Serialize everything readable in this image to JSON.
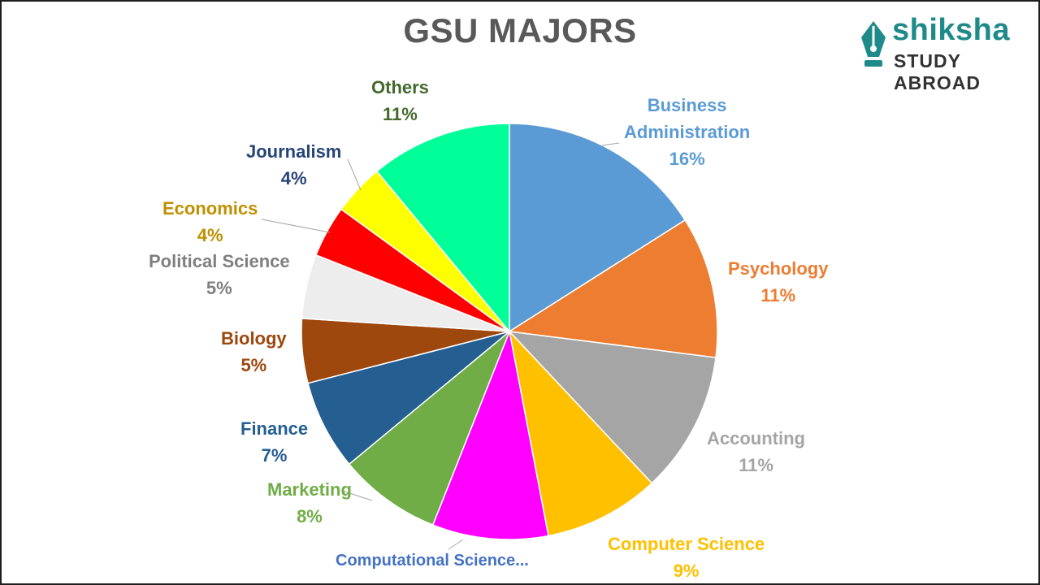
{
  "logo": {
    "brand": "shiksha",
    "subtitle": "STUDY ABROAD",
    "icon": "pen-nib-icon",
    "colors": {
      "brand": "#1f8a8a",
      "subtitle": "#333333"
    }
  },
  "chart_data": {
    "type": "pie",
    "title": "GSU MAJORS",
    "start": "12 o'clock",
    "direction": "clockwise",
    "legend": "none (data labels)",
    "slices": [
      {
        "label": "Business Administration",
        "display": [
          "Business",
          "Administration"
        ],
        "value": 16,
        "value_text": "16%",
        "color": "#5b9bd5"
      },
      {
        "label": "Psychology",
        "display": [
          "Psychology"
        ],
        "value": 11,
        "value_text": "11%",
        "color": "#ed7d31"
      },
      {
        "label": "Accounting",
        "display": [
          "Accounting"
        ],
        "value": 11,
        "value_text": "11%",
        "color": "#a5a5a5"
      },
      {
        "label": "Computer Science",
        "display": [
          "Computer Science"
        ],
        "value": 9,
        "value_text": "9%",
        "color": "#ffc000"
      },
      {
        "label": "Computational Science...",
        "display": [
          "Computational Science..."
        ],
        "value": 9,
        "value_text": "",
        "color": "#ff00ff"
      },
      {
        "label": "Marketing",
        "display": [
          "Marketing"
        ],
        "value": 8,
        "value_text": "8%",
        "color": "#70ad47"
      },
      {
        "label": "Finance",
        "display": [
          "Finance"
        ],
        "value": 7,
        "value_text": "7%",
        "color": "#255e91"
      },
      {
        "label": "Biology",
        "display": [
          "Biology"
        ],
        "value": 5,
        "value_text": "5%",
        "color": "#9e480e"
      },
      {
        "label": "Political Science",
        "display": [
          "Political Science"
        ],
        "value": 5,
        "value_text": "5%",
        "color": "#ededed"
      },
      {
        "label": "Economics",
        "display": [
          "Economics"
        ],
        "value": 4,
        "value_text": "4%",
        "color": "#ff0000"
      },
      {
        "label": "Journalism",
        "display": [
          "Journalism"
        ],
        "value": 4,
        "value_text": "4%",
        "color": "#ffff00"
      },
      {
        "label": "Others",
        "display": [
          "Others"
        ],
        "value": 11,
        "value_text": "11%",
        "color": "#00ff99"
      }
    ],
    "label_colors": {
      "Business Administration": "#5b9bd5",
      "Psychology": "#ed7d31",
      "Accounting": "#a5a5a5",
      "Computer Science": "#ffc000",
      "Computational Science...": "#4472c4",
      "Marketing": "#70ad47",
      "Finance": "#255e91",
      "Biology": "#9e480e",
      "Political Science": "#7f7f7f",
      "Economics": "#bf9000",
      "Journalism": "#264478",
      "Others": "#43682b"
    }
  }
}
